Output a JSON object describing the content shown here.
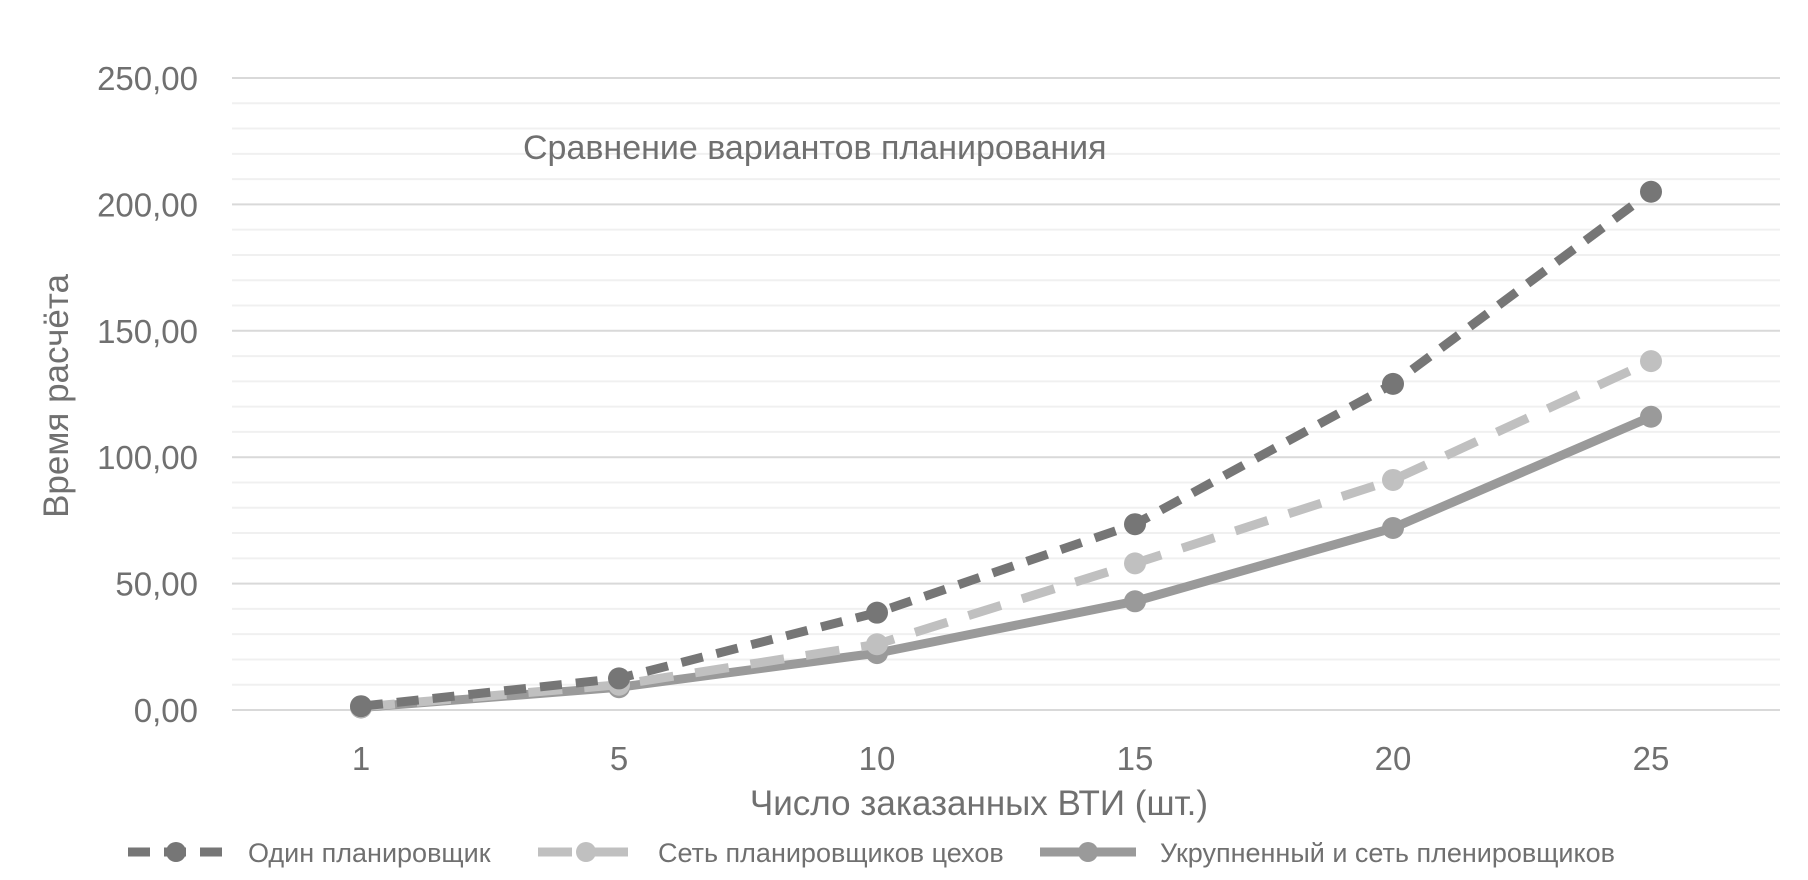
{
  "chart_data": {
    "type": "line",
    "title": "Сравнение вариантов планирования",
    "xlabel": "Число заказанных ВТИ (шт.)",
    "ylabel": "Время расчёта",
    "categories": [
      "1",
      "5",
      "10",
      "15",
      "20",
      "25"
    ],
    "ylim": [
      0,
      250
    ],
    "yticks": [
      "0,00",
      "50,00",
      "100,00",
      "150,00",
      "200,00",
      "250,00"
    ],
    "ytick_values": [
      0,
      50,
      100,
      150,
      200,
      250
    ],
    "grid": true,
    "minor_grid_step": 10,
    "legend_position": "bottom",
    "series": [
      {
        "name": "Один планировщик",
        "values": [
          1.5,
          12.5,
          38.5,
          73.5,
          129,
          205
        ],
        "color": "#767676",
        "dash": "dashed"
      },
      {
        "name": "Сеть планировщиков цехов",
        "values": [
          1.2,
          10,
          26,
          58,
          91,
          138
        ],
        "color": "#c0c0c0",
        "dash": "long-dash"
      },
      {
        "name": "Укрупненный и сеть пленировщиков",
        "values": [
          1.0,
          9,
          22.5,
          43,
          72,
          116
        ],
        "color": "#9a9a9a",
        "dash": "solid"
      }
    ]
  }
}
